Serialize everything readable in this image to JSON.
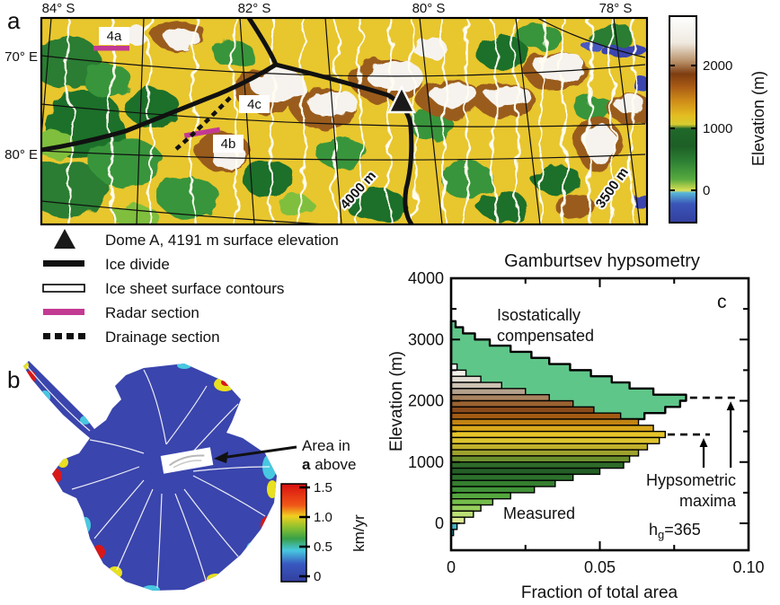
{
  "panel_a": {
    "label": "a",
    "lat_labels": [
      "84° S",
      "82° S",
      "80° S",
      "78° S"
    ],
    "lon_labels": [
      "70° E",
      "80° E"
    ],
    "contour_labels": [
      "4000 m",
      "3500 m"
    ],
    "section_labels": [
      "4a",
      "4b",
      "4c"
    ],
    "colorbar": {
      "title": "Elevation (m)",
      "ticks": [
        "2000",
        "1000",
        "0"
      ]
    }
  },
  "legend": {
    "items": [
      {
        "label": "Dome A, 4191 m surface elevation",
        "symbol": "triangle"
      },
      {
        "label": "Ice divide",
        "symbol": "thick-black-line"
      },
      {
        "label": "Ice sheet surface contours",
        "symbol": "white-outlined-bar"
      },
      {
        "label": "Radar section",
        "symbol": "magenta-bar"
      },
      {
        "label": "Drainage section",
        "symbol": "dashed-line"
      }
    ]
  },
  "panel_b": {
    "label": "b",
    "callout_line1": "Area in",
    "callout_line2_bold": "a",
    "callout_line2_rest": " above",
    "colorbar": {
      "ticks": [
        "1.5",
        "1.0",
        "0.5",
        "0"
      ],
      "unit": "km/yr"
    }
  },
  "panel_c": {
    "label": "c",
    "annotation_iso_line1": "Isostatically",
    "annotation_iso_line2": "compensated",
    "annotation_measured": "Measured",
    "annotation_max_line1": "Hypsometric",
    "annotation_max_line2": "maxima",
    "hg": {
      "h": "h",
      "sub": "g",
      "rest": "=365"
    }
  },
  "colors": {
    "radar_section": "#c23a92",
    "isostatic_fill": "#5fc689",
    "ice_divide": "#111111",
    "surface_contour": "#fffdf0"
  },
  "chart_data": {
    "type": "bar",
    "orientation": "horizontal-histogram",
    "title": "Gamburtsev hypsometry",
    "xlabel": "Fraction of total area",
    "ylabel": "Elevation (m)",
    "xlim": [
      0,
      0.1
    ],
    "ylim": [
      -440,
      4000
    ],
    "bin_width_m": 100,
    "xtick_labels": [
      "0",
      "0.05",
      "0.10"
    ],
    "ytick_labels": [
      "4000",
      "3000",
      "2000",
      "1000",
      "0"
    ],
    "series": [
      {
        "name": "Isostatically compensated",
        "color": "#5fc689",
        "bins": [
          {
            "e": 3200,
            "v": 0.0015
          },
          {
            "e": 3100,
            "v": 0.004
          },
          {
            "e": 3000,
            "v": 0.008
          },
          {
            "e": 2900,
            "v": 0.013
          },
          {
            "e": 2800,
            "v": 0.02
          },
          {
            "e": 2700,
            "v": 0.027
          },
          {
            "e": 2600,
            "v": 0.033
          },
          {
            "e": 2500,
            "v": 0.04
          },
          {
            "e": 2400,
            "v": 0.047
          },
          {
            "e": 2300,
            "v": 0.054
          },
          {
            "e": 2200,
            "v": 0.06
          },
          {
            "e": 2100,
            "v": 0.068
          },
          {
            "e": 2000,
            "v": 0.079
          },
          {
            "e": 1900,
            "v": 0.077
          },
          {
            "e": 1800,
            "v": 0.072
          },
          {
            "e": 1700,
            "v": 0.065
          },
          {
            "e": 1600,
            "v": 0.056
          },
          {
            "e": 1500,
            "v": 0.05
          }
        ]
      },
      {
        "name": "Measured",
        "bins": [
          {
            "e": 2500,
            "v": 0.002,
            "c": "#ffffff"
          },
          {
            "e": 2400,
            "v": 0.005,
            "c": "#f4f0e9"
          },
          {
            "e": 2300,
            "v": 0.01,
            "c": "#e2dcd2"
          },
          {
            "e": 2200,
            "v": 0.017,
            "c": "#cdc2b2"
          },
          {
            "e": 2100,
            "v": 0.025,
            "c": "#b5a28c"
          },
          {
            "e": 2000,
            "v": 0.033,
            "c": "#a9845f"
          },
          {
            "e": 1900,
            "v": 0.041,
            "c": "#9a6231"
          },
          {
            "e": 1800,
            "v": 0.048,
            "c": "#8a4a1b"
          },
          {
            "e": 1700,
            "v": 0.057,
            "c": "#a35b13"
          },
          {
            "e": 1600,
            "v": 0.063,
            "c": "#c28312"
          },
          {
            "e": 1500,
            "v": 0.068,
            "c": "#d9a81b"
          },
          {
            "e": 1400,
            "v": 0.072,
            "c": "#e7c52a"
          },
          {
            "e": 1300,
            "v": 0.07,
            "c": "#ddc32f"
          },
          {
            "e": 1200,
            "v": 0.066,
            "c": "#c0b02c"
          },
          {
            "e": 1100,
            "v": 0.063,
            "c": "#9da22e"
          },
          {
            "e": 1000,
            "v": 0.06,
            "c": "#6b8f2d"
          },
          {
            "e": 900,
            "v": 0.058,
            "c": "#2e6b29"
          },
          {
            "e": 800,
            "v": 0.05,
            "c": "#245f26"
          },
          {
            "e": 700,
            "v": 0.041,
            "c": "#2c712c"
          },
          {
            "e": 600,
            "v": 0.035,
            "c": "#357f30"
          },
          {
            "e": 500,
            "v": 0.028,
            "c": "#419238"
          },
          {
            "e": 400,
            "v": 0.02,
            "c": "#55a83f"
          },
          {
            "e": 300,
            "v": 0.014,
            "c": "#74bd4b"
          },
          {
            "e": 200,
            "v": 0.01,
            "c": "#97cf5d"
          },
          {
            "e": 100,
            "v": 0.0075,
            "c": "#bcdf75"
          },
          {
            "e": 0,
            "v": 0.0045,
            "c": "#dcea93"
          },
          {
            "e": -100,
            "v": 0.002,
            "c": "#41b3c6"
          },
          {
            "e": -200,
            "v": 0.0008,
            "c": "#2f9fb4"
          }
        ]
      }
    ],
    "maxima": [
      {
        "elevation": 2050,
        "value": 0.0794,
        "dash_to": 0.0955,
        "arrow_x": 0.094
      },
      {
        "elevation": 1450,
        "value": 0.0719,
        "dash_to": 0.087,
        "arrow_x": 0.0849
      }
    ]
  }
}
